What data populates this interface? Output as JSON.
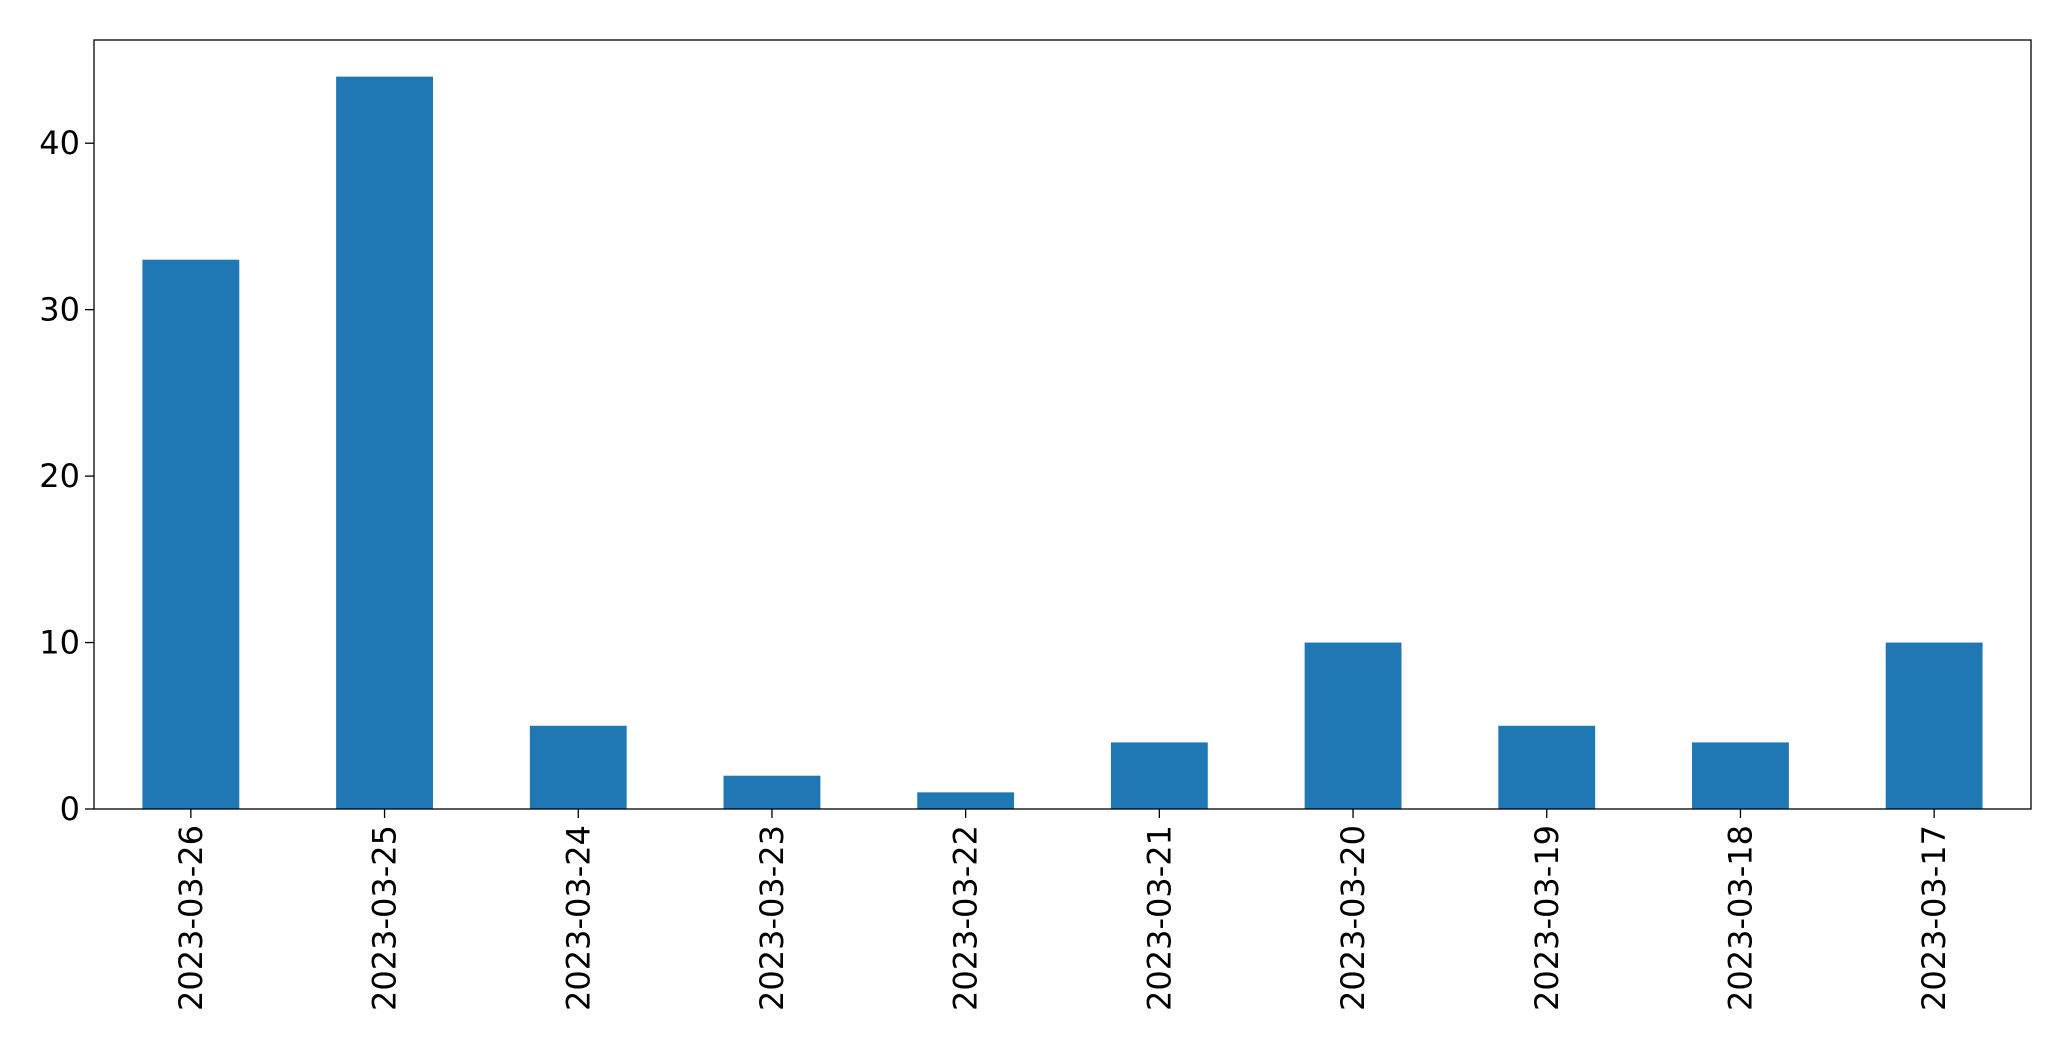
{
  "chart_data": {
    "type": "bar",
    "categories": [
      "2023-03-26",
      "2023-03-25",
      "2023-03-24",
      "2023-03-23",
      "2023-03-22",
      "2023-03-21",
      "2023-03-20",
      "2023-03-19",
      "2023-03-18",
      "2023-03-17"
    ],
    "values": [
      33,
      44,
      5,
      2,
      1,
      4,
      10,
      5,
      4,
      10
    ],
    "color": "#1f77b4",
    "ylim": [
      0,
      46.2
    ],
    "yticks": [
      0,
      10,
      20,
      30,
      40
    ],
    "grid": false
  }
}
